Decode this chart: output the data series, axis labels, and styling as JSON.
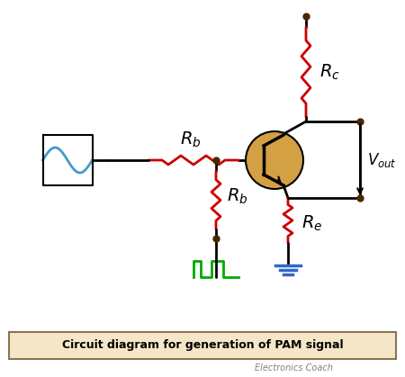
{
  "title": "Circuit diagram for generation of PAM signal",
  "subtitle": "Electronics Coach",
  "bg_color": "#ffffff",
  "title_bg": "#f5e6c8",
  "border_color": "#8B7355",
  "resistor_color": "#cc0000",
  "wire_color": "#000000",
  "sine_color": "#4499cc",
  "pulse_color": "#00aa00",
  "transistor_color": "#d4a044",
  "ground_color": "#3366cc",
  "dot_color": "#4a2800",
  "vout_color": "#000000"
}
